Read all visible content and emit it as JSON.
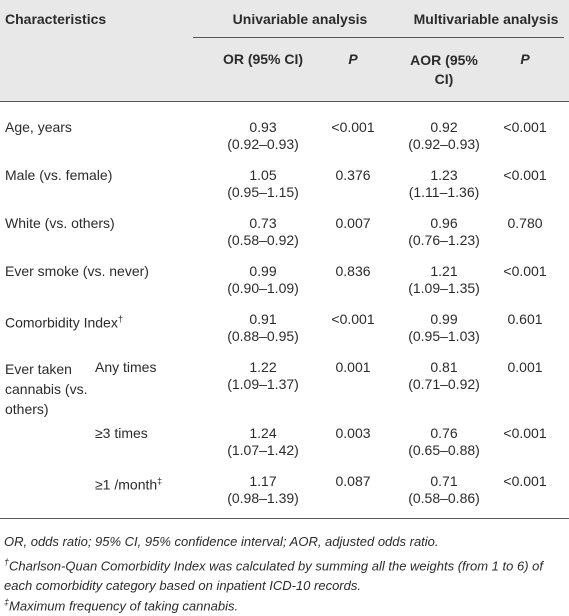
{
  "header": {
    "characteristics": "Characteristics",
    "univariable": "Univariable analysis",
    "multivariable": "Multivariable analysis",
    "or": "OR (95% CI)",
    "p1": "P",
    "aor": "AOR (95% CI)",
    "p2": "P"
  },
  "rows": [
    {
      "label": "Age, years",
      "or": "0.93",
      "or_ci": "(0.92–0.93)",
      "p": "<0.001",
      "aor": "0.92",
      "aor_ci": "(0.92–0.93)",
      "ap": "<0.001"
    },
    {
      "label": "Male (vs. female)",
      "or": "1.05",
      "or_ci": "(0.95–1.15)",
      "p": "0.376",
      "aor": "1.23",
      "aor_ci": "(1.11–1.36)",
      "ap": "<0.001"
    },
    {
      "label": "White (vs. others)",
      "or": "0.73",
      "or_ci": "(0.58–0.92)",
      "p": "0.007",
      "aor": "0.96",
      "aor_ci": "(0.76–1.23)",
      "ap": "0.780"
    },
    {
      "label": "Ever smoke (vs. never)",
      "or": "0.99",
      "or_ci": "(0.90–1.09)",
      "p": "0.836",
      "aor": "1.21",
      "aor_ci": "(1.09–1.35)",
      "ap": "<0.001"
    },
    {
      "label": "Comorbidity Index",
      "sup": "†",
      "or": "0.91",
      "or_ci": "(0.88–0.95)",
      "p": "<0.001",
      "aor": "0.99",
      "aor_ci": "(0.95–1.03)",
      "ap": "0.601"
    },
    {
      "label": "Ever taken cannabis (vs. others)",
      "sublabel": "Any times",
      "or": "1.22",
      "or_ci": "(1.09–1.37)",
      "p": "0.001",
      "aor": "0.81",
      "aor_ci": "(0.71–0.92)",
      "ap": "0.001"
    },
    {
      "sublabel": "≥3 times",
      "or": "1.24",
      "or_ci": "(1.07–1.42)",
      "p": "0.003",
      "aor": "0.76",
      "aor_ci": "(0.65–0.88)",
      "ap": "<0.001"
    },
    {
      "sublabel": "≥1 /month",
      "sup": "‡",
      "or": "1.17",
      "or_ci": "(0.98–1.39)",
      "p": "0.087",
      "aor": "0.71",
      "aor_ci": "(0.58–0.86)",
      "ap": "<0.001"
    }
  ],
  "footnotes": [
    {
      "text": "OR, odds ratio; 95% CI, 95% confidence interval; AOR, adjusted odds ratio."
    },
    {
      "mark": "†",
      "text": "Charlson-Quan Comorbidity Index was calculated by summing all the weights (from 1 to 6) of each comorbidity category based on inpatient ICD-10 records."
    },
    {
      "mark": "‡",
      "text": "Maximum frequency of taking cannabis."
    }
  ]
}
